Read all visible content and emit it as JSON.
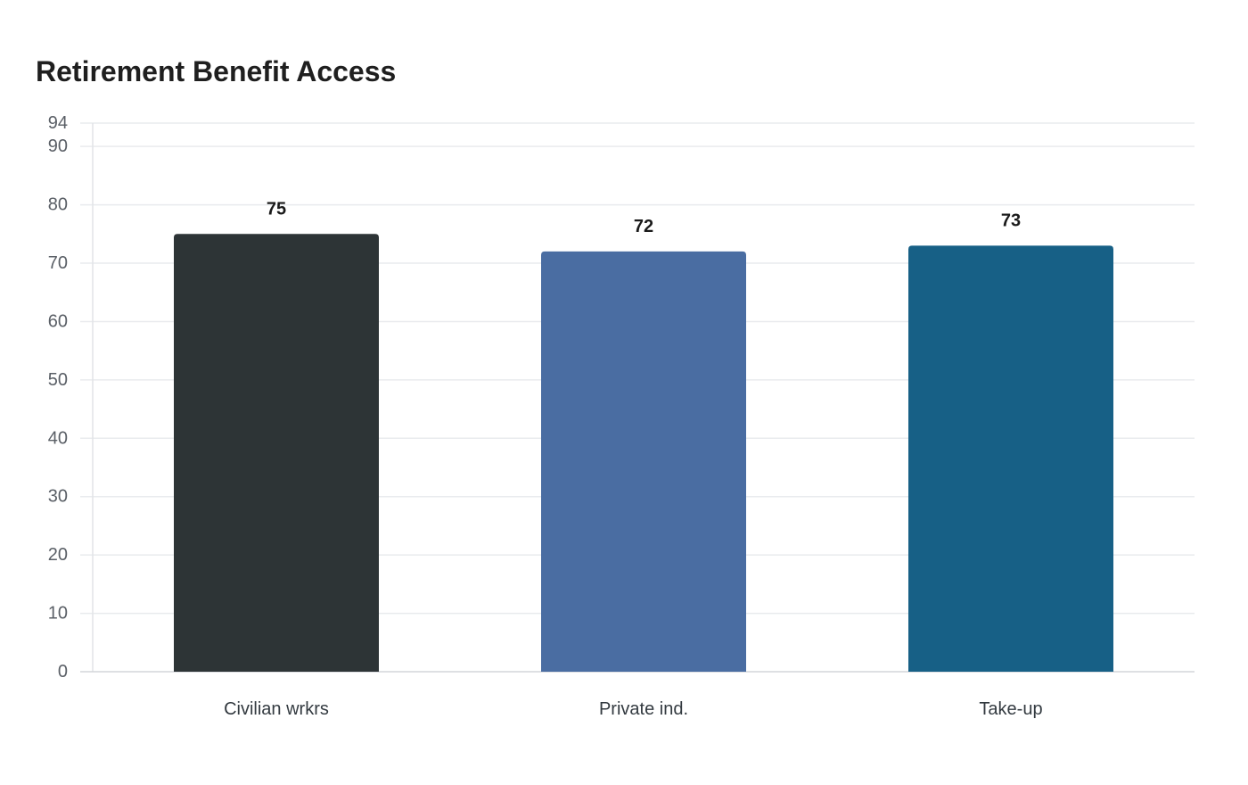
{
  "chart_data": {
    "type": "bar",
    "title": "Retirement Benefit Access",
    "xlabel": "",
    "ylabel": "",
    "categories": [
      "Civilian wrkrs",
      "Private ind.",
      "Take-up"
    ],
    "values": [
      75,
      72,
      73
    ],
    "colors": [
      "#2d3436",
      "#4a6da2",
      "#176086"
    ],
    "ylim": [
      0,
      94
    ],
    "yticks": [
      0,
      10,
      20,
      30,
      40,
      50,
      60,
      70,
      80,
      90,
      94
    ],
    "grid": true,
    "legend": "none"
  }
}
